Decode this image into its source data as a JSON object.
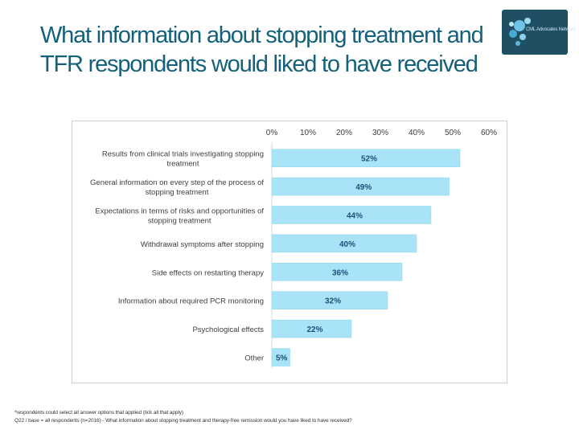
{
  "slide": {
    "title": "What information about stopping treatment and TFR respondents would liked to have received",
    "logo_text": "CML Advocates Network"
  },
  "colors": {
    "title": "#15607a",
    "bar": "#a8e3f8",
    "bar_stroke": "#8ed4ee",
    "logo_bg": "#1e4f63"
  },
  "chart_data": {
    "type": "bar",
    "orientation": "horizontal",
    "categories": [
      "Results from clinical trials investigating stopping treatment",
      "General information on every step of the process of stopping treatment",
      "Expectations in terms of risks and opportunities of stopping treatment",
      "Withdrawal symptoms after stopping",
      "Side effects on restarting therapy",
      "Information about required PCR monitoring",
      "Psychological effects",
      "Other"
    ],
    "category_lines": [
      [
        "Results from clinical trials investigating stopping",
        "treatment"
      ],
      [
        "General information on every step of the process of",
        "stopping treatment"
      ],
      [
        "Expectations in terms of risks and opportunities of",
        "stopping treatment"
      ],
      [
        "Withdrawal symptoms after stopping"
      ],
      [
        "Side effects on restarting therapy"
      ],
      [
        "Information about required PCR monitoring"
      ],
      [
        "Psychological effects"
      ],
      [
        "Other"
      ]
    ],
    "values": [
      52,
      49,
      44,
      40,
      36,
      32,
      22,
      5
    ],
    "data_labels": [
      "52%",
      "49%",
      "44%",
      "40%",
      "36%",
      "32%",
      "22%",
      "5%"
    ],
    "xlim": [
      0,
      60
    ],
    "ticks": [
      0,
      10,
      20,
      30,
      40,
      50,
      60
    ],
    "tick_labels": [
      "0%",
      "10%",
      "20%",
      "30%",
      "40%",
      "50%",
      "60%"
    ],
    "axis_position": "top",
    "grid": false,
    "legend": "none"
  },
  "footnotes": {
    "line1": "*respondents could select all answer options that applied (tick all that apply)",
    "line2": "Q22 / base = all respondents (n=2016) - What information about stopping treatment and therapy-free remission would you have liked to have received?"
  }
}
